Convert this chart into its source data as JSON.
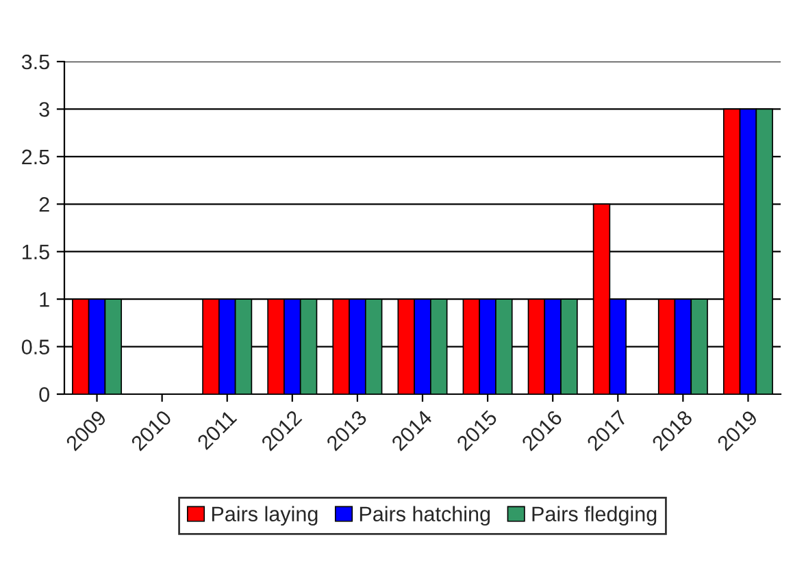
{
  "chart_data": {
    "type": "bar",
    "categories": [
      "2009",
      "2010",
      "2011",
      "2012",
      "2013",
      "2014",
      "2015",
      "2016",
      "2017",
      "2018",
      "2019"
    ],
    "series": [
      {
        "name": "Pairs laying",
        "color": "#ff0000",
        "values": [
          1,
          0,
          1,
          1,
          1,
          1,
          1,
          1,
          2,
          1,
          3
        ]
      },
      {
        "name": "Pairs hatching",
        "color": "#0000ff",
        "values": [
          1,
          0,
          1,
          1,
          1,
          1,
          1,
          1,
          1,
          1,
          3
        ]
      },
      {
        "name": "Pairs fledging",
        "color": "#339966",
        "values": [
          1,
          0,
          1,
          1,
          1,
          1,
          1,
          1,
          0,
          1,
          3
        ]
      }
    ],
    "ylim": [
      0,
      3.5
    ],
    "yticks": [
      0,
      0.5,
      1,
      1.5,
      2,
      2.5,
      3,
      3.5
    ],
    "grid": "y",
    "legend": "bottom"
  }
}
